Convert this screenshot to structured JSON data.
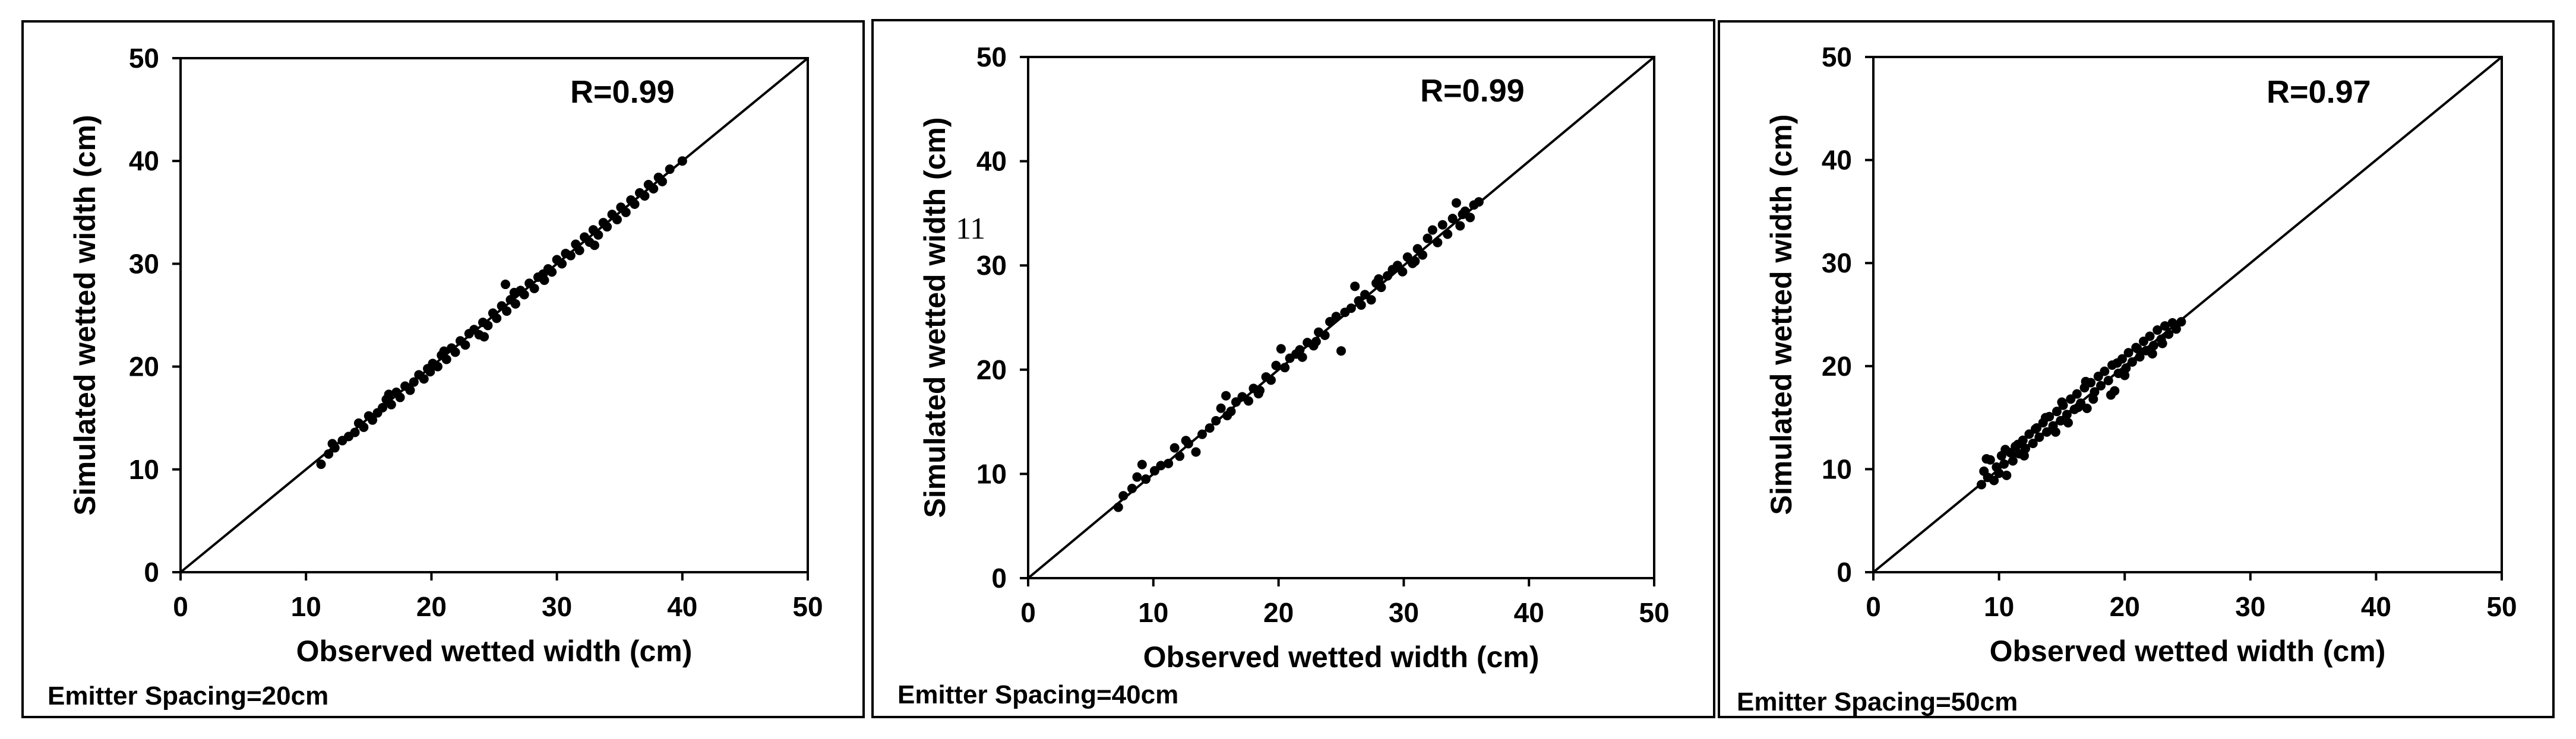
{
  "chart_data": [
    {
      "type": "scatter",
      "caption": "Emitter Spacing=20cm",
      "annotation": "R=0.99",
      "xlabel": "Observed wetted width (cm)",
      "ylabel": "Simulated wetted width (cm)",
      "xlim": [
        0,
        50
      ],
      "ylim": [
        0,
        50
      ],
      "xticks": [
        "0",
        "10",
        "20",
        "30",
        "40",
        "50"
      ],
      "yticks": [
        "0",
        "10",
        "20",
        "30",
        "40",
        "50"
      ],
      "reference_line": "1:1",
      "grid": false,
      "points": [
        [
          11.2,
          10.5
        ],
        [
          11.8,
          11.5
        ],
        [
          12.3,
          12.1
        ],
        [
          12.9,
          12.8
        ],
        [
          13.4,
          13.2
        ],
        [
          13.9,
          13.6
        ],
        [
          14.2,
          14.5
        ],
        [
          14.6,
          14.1
        ],
        [
          15.0,
          15.2
        ],
        [
          15.3,
          14.8
        ],
        [
          15.7,
          15.5
        ],
        [
          16.1,
          16.0
        ],
        [
          16.4,
          16.8
        ],
        [
          16.8,
          16.3
        ],
        [
          17.2,
          17.5
        ],
        [
          17.5,
          17.0
        ],
        [
          17.9,
          18.1
        ],
        [
          18.3,
          17.7
        ],
        [
          18.6,
          18.5
        ],
        [
          19.0,
          19.2
        ],
        [
          19.4,
          18.8
        ],
        [
          19.7,
          19.8
        ],
        [
          20.1,
          20.3
        ],
        [
          20.5,
          20.0
        ],
        [
          20.8,
          21.1
        ],
        [
          21.2,
          20.7
        ],
        [
          21.6,
          21.8
        ],
        [
          21.9,
          21.4
        ],
        [
          22.3,
          22.5
        ],
        [
          22.7,
          22.1
        ],
        [
          23.0,
          23.2
        ],
        [
          23.4,
          23.6
        ],
        [
          23.8,
          23.1
        ],
        [
          24.1,
          24.3
        ],
        [
          24.5,
          24.0
        ],
        [
          24.9,
          25.2
        ],
        [
          25.2,
          24.7
        ],
        [
          25.6,
          25.9
        ],
        [
          25.9,
          28.0
        ],
        [
          26.0,
          25.4
        ],
        [
          26.3,
          26.5
        ],
        [
          26.7,
          26.1
        ],
        [
          27.1,
          27.4
        ],
        [
          27.4,
          27.0
        ],
        [
          27.8,
          28.1
        ],
        [
          28.2,
          27.6
        ],
        [
          28.5,
          28.7
        ],
        [
          28.9,
          29.0
        ],
        [
          29.3,
          29.5
        ],
        [
          29.6,
          29.2
        ],
        [
          30.0,
          30.4
        ],
        [
          30.4,
          30.0
        ],
        [
          30.7,
          31.0
        ],
        [
          31.1,
          30.8
        ],
        [
          31.5,
          31.9
        ],
        [
          31.8,
          31.3
        ],
        [
          32.2,
          32.6
        ],
        [
          32.6,
          32.1
        ],
        [
          32.9,
          33.3
        ],
        [
          33.3,
          32.8
        ],
        [
          33.7,
          34.0
        ],
        [
          34.0,
          33.6
        ],
        [
          34.4,
          34.8
        ],
        [
          34.8,
          34.3
        ],
        [
          35.1,
          35.5
        ],
        [
          35.5,
          35.0
        ],
        [
          35.9,
          36.2
        ],
        [
          36.2,
          35.8
        ],
        [
          36.6,
          36.9
        ],
        [
          37.0,
          36.6
        ],
        [
          37.3,
          37.7
        ],
        [
          37.7,
          37.3
        ],
        [
          38.1,
          38.4
        ],
        [
          38.4,
          38.0
        ],
        [
          39.0,
          39.2
        ],
        [
          40.0,
          40.0
        ],
        [
          24.2,
          22.9
        ],
        [
          21.0,
          21.5
        ],
        [
          26.6,
          27.2
        ],
        [
          19.9,
          19.5
        ],
        [
          16.6,
          17.3
        ],
        [
          33.0,
          31.8
        ],
        [
          12.1,
          12.5
        ],
        [
          29.0,
          28.4
        ]
      ]
    },
    {
      "type": "scatter",
      "caption": "Emitter Spacing=40cm",
      "annotation": "R=0.99",
      "stray_text": "11",
      "xlabel": "Observed wetted width (cm)",
      "ylabel": "Simulated wetted width (cm)",
      "xlim": [
        0,
        50
      ],
      "ylim": [
        0,
        50
      ],
      "xticks": [
        "0",
        "10",
        "20",
        "30",
        "40",
        "50"
      ],
      "yticks": [
        "0",
        "10",
        "20",
        "30",
        "40",
        "50"
      ],
      "reference_line": "1:1",
      "grid": false,
      "points": [
        [
          7.2,
          6.8
        ],
        [
          7.6,
          7.9
        ],
        [
          8.3,
          8.6
        ],
        [
          8.7,
          9.7
        ],
        [
          9.1,
          10.9
        ],
        [
          9.4,
          9.5
        ],
        [
          10.1,
          10.3
        ],
        [
          10.6,
          10.8
        ],
        [
          11.2,
          11.0
        ],
        [
          11.7,
          12.5
        ],
        [
          12.1,
          11.7
        ],
        [
          12.8,
          12.9
        ],
        [
          13.4,
          12.1
        ],
        [
          13.9,
          13.8
        ],
        [
          14.5,
          14.4
        ],
        [
          15.0,
          15.1
        ],
        [
          15.4,
          16.3
        ],
        [
          15.8,
          17.5
        ],
        [
          16.2,
          16.0
        ],
        [
          16.6,
          16.9
        ],
        [
          17.1,
          17.4
        ],
        [
          17.6,
          17.0
        ],
        [
          18.0,
          18.2
        ],
        [
          18.5,
          18.0
        ],
        [
          19.0,
          19.3
        ],
        [
          19.4,
          19.0
        ],
        [
          19.8,
          20.4
        ],
        [
          20.2,
          22.0
        ],
        [
          20.5,
          20.2
        ],
        [
          20.9,
          21.1
        ],
        [
          21.4,
          21.5
        ],
        [
          21.9,
          21.2
        ],
        [
          22.3,
          22.6
        ],
        [
          22.8,
          22.3
        ],
        [
          23.2,
          23.6
        ],
        [
          23.7,
          23.3
        ],
        [
          24.1,
          24.6
        ],
        [
          24.6,
          25.1
        ],
        [
          25.0,
          21.8
        ],
        [
          25.3,
          25.5
        ],
        [
          25.8,
          25.9
        ],
        [
          26.1,
          28.0
        ],
        [
          26.4,
          26.6
        ],
        [
          26.9,
          27.2
        ],
        [
          27.4,
          26.7
        ],
        [
          27.8,
          28.3
        ],
        [
          28.2,
          27.9
        ],
        [
          28.7,
          29.0
        ],
        [
          29.1,
          29.6
        ],
        [
          29.5,
          30.0
        ],
        [
          29.9,
          29.4
        ],
        [
          30.3,
          30.8
        ],
        [
          30.7,
          30.2
        ],
        [
          31.1,
          31.6
        ],
        [
          31.5,
          31.0
        ],
        [
          31.9,
          32.6
        ],
        [
          32.3,
          33.4
        ],
        [
          32.7,
          32.2
        ],
        [
          33.1,
          33.9
        ],
        [
          33.5,
          33.0
        ],
        [
          33.9,
          34.5
        ],
        [
          34.2,
          36.0
        ],
        [
          34.5,
          33.8
        ],
        [
          34.9,
          35.2
        ],
        [
          35.3,
          34.6
        ],
        [
          35.6,
          35.8
        ],
        [
          36.0,
          36.1
        ],
        [
          18.4,
          17.7
        ],
        [
          23.0,
          22.7
        ],
        [
          28.0,
          28.7
        ],
        [
          30.9,
          30.4
        ],
        [
          15.9,
          15.6
        ],
        [
          26.6,
          26.2
        ],
        [
          21.7,
          21.9
        ],
        [
          12.6,
          13.2
        ],
        [
          34.7,
          34.9
        ]
      ]
    },
    {
      "type": "scatter",
      "caption": "Emitter Spacing=50cm",
      "annotation": "R=0.97",
      "xlabel": "Observed wetted width (cm)",
      "ylabel": "Simulated wetted width (cm)",
      "xlim": [
        0,
        50
      ],
      "ylim": [
        0,
        50
      ],
      "xticks": [
        "0",
        "10",
        "20",
        "30",
        "40",
        "50"
      ],
      "yticks": [
        "0",
        "10",
        "20",
        "30",
        "40",
        "50"
      ],
      "reference_line": "1:1",
      "grid": false,
      "points": [
        [
          8.6,
          8.5
        ],
        [
          8.8,
          9.8
        ],
        [
          9.1,
          9.2
        ],
        [
          9.3,
          10.9
        ],
        [
          9.6,
          8.9
        ],
        [
          9.8,
          10.2
        ],
        [
          10.0,
          9.6
        ],
        [
          10.2,
          11.3
        ],
        [
          10.4,
          10.5
        ],
        [
          10.6,
          9.4
        ],
        [
          10.9,
          11.6
        ],
        [
          11.1,
          10.8
        ],
        [
          11.3,
          12.2
        ],
        [
          11.6,
          11.5
        ],
        [
          11.9,
          12.8
        ],
        [
          12.1,
          12.0
        ],
        [
          12.4,
          13.4
        ],
        [
          12.7,
          12.5
        ],
        [
          12.9,
          13.9
        ],
        [
          13.2,
          13.1
        ],
        [
          13.5,
          14.5
        ],
        [
          13.8,
          13.6
        ],
        [
          14.0,
          15.1
        ],
        [
          14.3,
          14.2
        ],
        [
          14.6,
          15.6
        ],
        [
          14.9,
          14.7
        ],
        [
          15.1,
          16.2
        ],
        [
          15.4,
          15.3
        ],
        [
          15.7,
          16.8
        ],
        [
          16.0,
          15.8
        ],
        [
          16.2,
          17.3
        ],
        [
          16.5,
          16.4
        ],
        [
          16.8,
          17.9
        ],
        [
          17.0,
          15.9
        ],
        [
          17.3,
          18.4
        ],
        [
          17.6,
          17.5
        ],
        [
          17.9,
          19.0
        ],
        [
          18.1,
          18.1
        ],
        [
          18.4,
          19.5
        ],
        [
          18.7,
          18.6
        ],
        [
          19.0,
          20.1
        ],
        [
          19.2,
          17.6
        ],
        [
          19.5,
          19.3
        ],
        [
          19.8,
          20.7
        ],
        [
          20.1,
          19.8
        ],
        [
          20.3,
          21.3
        ],
        [
          20.6,
          20.4
        ],
        [
          20.9,
          21.8
        ],
        [
          21.2,
          20.9
        ],
        [
          21.5,
          22.4
        ],
        [
          21.7,
          21.5
        ],
        [
          22.0,
          22.9
        ],
        [
          22.3,
          22.0
        ],
        [
          22.6,
          23.5
        ],
        [
          22.9,
          22.6
        ],
        [
          23.2,
          23.9
        ],
        [
          23.5,
          23.1
        ],
        [
          23.8,
          24.2
        ],
        [
          24.1,
          23.6
        ],
        [
          24.5,
          24.3
        ],
        [
          9.0,
          11.0
        ],
        [
          10.5,
          11.9
        ],
        [
          12.0,
          11.3
        ],
        [
          13.0,
          14.0
        ],
        [
          14.5,
          13.6
        ],
        [
          15.5,
          14.5
        ],
        [
          16.3,
          16.0
        ],
        [
          17.5,
          16.8
        ],
        [
          18.9,
          17.2
        ],
        [
          20.0,
          19.1
        ],
        [
          21.0,
          21.7
        ],
        [
          22.2,
          21.2
        ],
        [
          23.0,
          22.2
        ],
        [
          11.5,
          12.4
        ],
        [
          13.7,
          15.0
        ],
        [
          15.0,
          16.5
        ],
        [
          16.9,
          18.5
        ],
        [
          19.4,
          20.3
        ]
      ]
    }
  ]
}
